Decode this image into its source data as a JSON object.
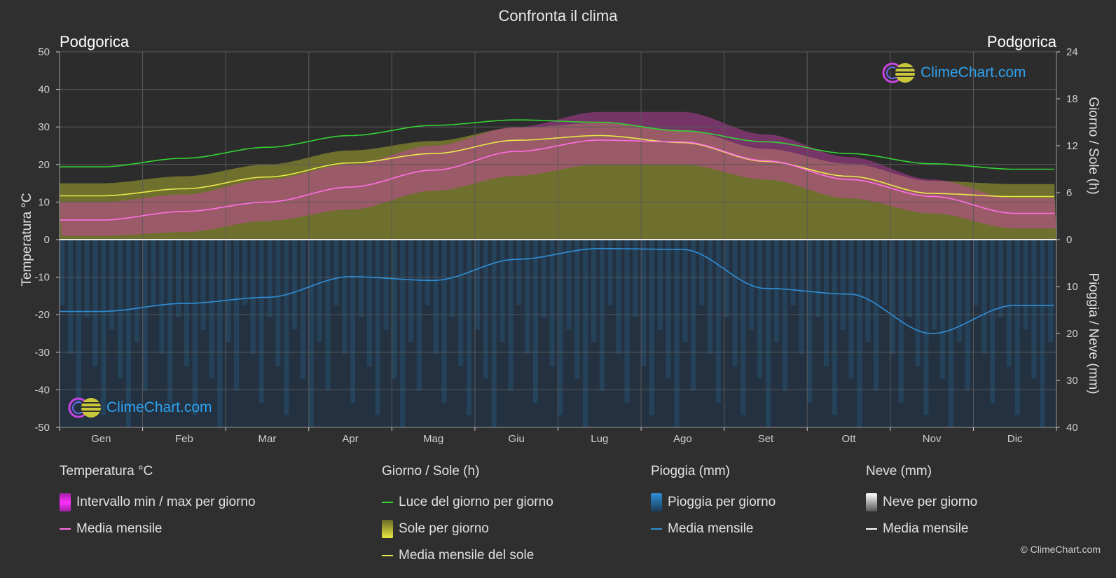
{
  "title": "Confronta il clima",
  "city_left": "Podgorica",
  "city_right": "Podgorica",
  "copyright": "© ClimeChart.com",
  "logo_text": "ClimeChart.com",
  "legend": {
    "temp": {
      "header": "Temperatura °C",
      "range": "Intervallo min / max per giorno",
      "mean": "Media mensile"
    },
    "sun": {
      "header": "Giorno / Sole (h)",
      "daylight": "Luce del giorno per giorno",
      "sunshine": "Sole per giorno",
      "mean": "Media mensile del sole"
    },
    "rain": {
      "header": "Pioggia (mm)",
      "daily": "Pioggia per giorno",
      "mean": "Media mensile"
    },
    "snow": {
      "header": "Neve (mm)",
      "daily": "Neve per giorno",
      "mean": "Media mensile"
    }
  },
  "colors": {
    "background": "#2f2f2f",
    "daylight": "#34d234",
    "sunshine_line": "#e8e84a",
    "sunshine_fill": "#a8a832",
    "temp_mean": "#ff6fe4",
    "temp_range": "#d040b0",
    "rain": "#2f8fd8",
    "snow": "#ffffff"
  },
  "chart_data": {
    "type": "area",
    "months": [
      "Gen",
      "Feb",
      "Mar",
      "Apr",
      "Mag",
      "Giu",
      "Lug",
      "Ago",
      "Set",
      "Ott",
      "Nov",
      "Dic"
    ],
    "axes": {
      "left": {
        "label": "Temperatura °C",
        "range": [
          -50,
          50
        ],
        "ticks": [
          50,
          40,
          30,
          20,
          10,
          0,
          -10,
          -20,
          -30,
          -40,
          -50
        ]
      },
      "right_top": {
        "label": "Giorno / Sole (h)",
        "range": [
          0,
          24
        ],
        "ticks": [
          24,
          18,
          12,
          6,
          0
        ]
      },
      "right_bottom": {
        "label": "Pioggia / Neve (mm)",
        "range": [
          0,
          40
        ],
        "ticks": [
          10,
          20,
          30,
          40
        ]
      }
    },
    "series": [
      {
        "name": "Luce del giorno per giorno",
        "unit": "h",
        "values": [
          9.3,
          10.4,
          11.8,
          13.3,
          14.6,
          15.3,
          15.0,
          13.9,
          12.5,
          11.0,
          9.7,
          9.0
        ]
      },
      {
        "name": "Media mensile del sole",
        "unit": "h",
        "values": [
          5.6,
          6.5,
          8.0,
          9.8,
          11.0,
          12.7,
          13.3,
          12.4,
          10.0,
          8.1,
          5.9,
          5.5
        ]
      },
      {
        "name": "Media mensile",
        "kind": "temperature",
        "unit": "°C",
        "values": [
          5.2,
          7.5,
          10.0,
          14.0,
          18.5,
          23.5,
          26.5,
          26.0,
          21.0,
          16.0,
          11.5,
          7.0
        ]
      },
      {
        "name": "Temperatura max",
        "unit": "°C",
        "values": [
          10,
          12,
          16,
          20,
          25,
          30,
          34,
          34,
          28,
          22,
          16,
          11
        ]
      },
      {
        "name": "Temperatura min",
        "unit": "°C",
        "values": [
          1,
          2,
          5,
          8,
          13,
          17,
          20,
          20,
          16,
          11,
          7,
          3
        ]
      },
      {
        "name": "Media mensile",
        "kind": "rain",
        "unit": "mm",
        "values": [
          15.3,
          13.6,
          12.3,
          7.9,
          8.7,
          4.2,
          1.9,
          2.1,
          10.4,
          11.6,
          20.0,
          14.0
        ]
      }
    ],
    "grid": true
  }
}
